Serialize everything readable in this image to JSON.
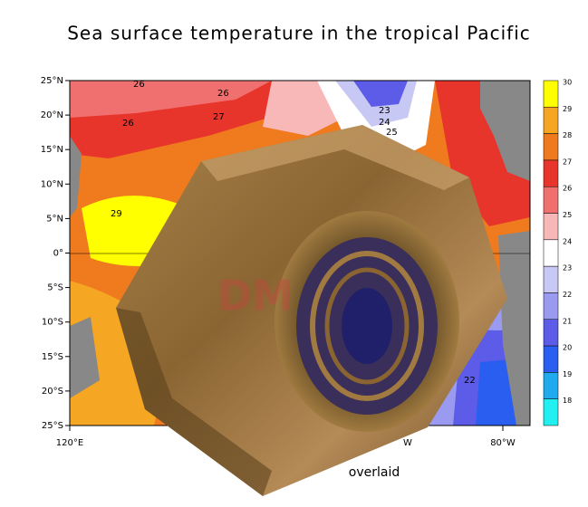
{
  "title": "Sea surface temperature in the tropical Pacific",
  "lat_labels": [
    "25°N",
    "20°N",
    "15°N",
    "10°N",
    "5°N",
    "0°",
    "5°S",
    "10°S",
    "15°S",
    "20°S",
    "25°S"
  ],
  "lon_labels": [
    "120°E",
    "W",
    "80°W"
  ],
  "contour_labels": [
    "26",
    "26",
    "26",
    "27",
    "23",
    "24",
    "25",
    "29",
    "22"
  ],
  "colorbar": {
    "levels": [
      30,
      29,
      28,
      27,
      26,
      25,
      24,
      23,
      22,
      21,
      20,
      19,
      18
    ],
    "colors": [
      "#ffff00",
      "#f5a623",
      "#f07a1e",
      "#e8352c",
      "#f07070",
      "#f8b8b8",
      "#ffffff",
      "#c8c8f4",
      "#9a9af0",
      "#5c5ce8",
      "#2a5ef0",
      "#22aaee",
      "#22f0f0"
    ]
  },
  "caption": "overlaid"
}
